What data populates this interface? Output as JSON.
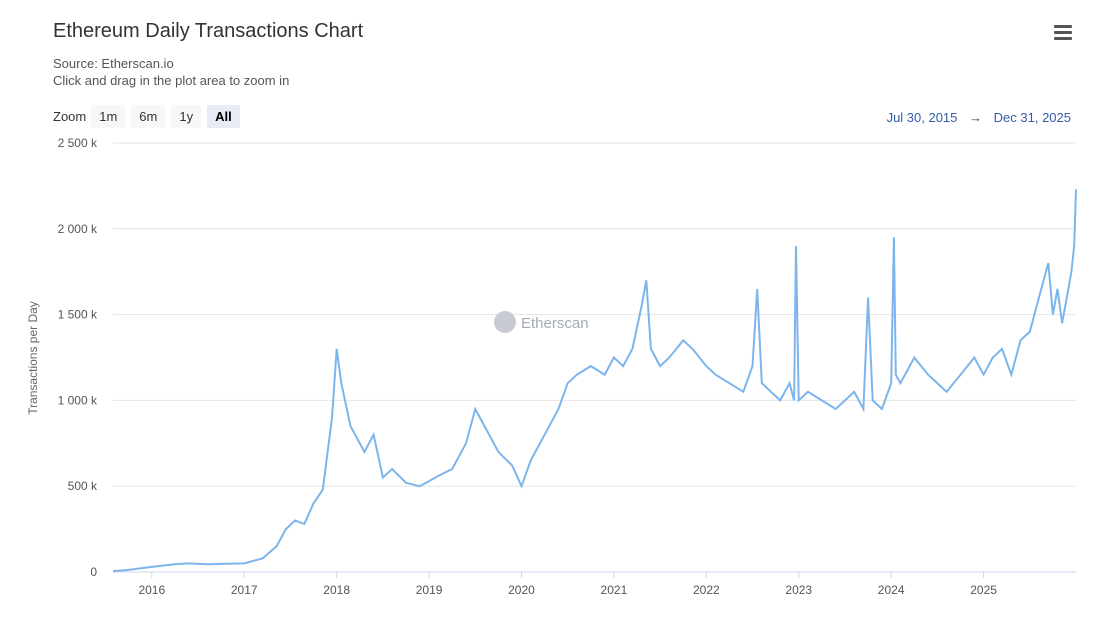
{
  "header": {
    "title": "Ethereum Daily Transactions Chart",
    "source": "Source: Etherscan.io",
    "hint": "Click and drag in the plot area to zoom in"
  },
  "zoom": {
    "label": "Zoom",
    "buttons": [
      "1m",
      "6m",
      "1y",
      "All"
    ],
    "selected": "All"
  },
  "range": {
    "from": "Jul 30, 2015",
    "arrow": "→",
    "to": "Dec 31, 2025"
  },
  "watermark": "Etherscan",
  "colors": {
    "line": "#7cb5ec",
    "grid": "#e6e6e6",
    "range_text": "#335cad"
  },
  "chart_data": {
    "type": "line",
    "title": "Ethereum Daily Transactions Chart",
    "ylabel": "Transactions per Day",
    "xlabel": "",
    "xlim": [
      2015.58,
      2026.0
    ],
    "ylim": [
      0,
      2500000
    ],
    "y_ticks": [
      0,
      500000,
      1000000,
      1500000,
      2000000,
      2500000
    ],
    "y_tick_labels": [
      "0",
      "500 k",
      "1 000 k",
      "1 500 k",
      "2 000 k",
      "2 500 k"
    ],
    "x_ticks": [
      2016,
      2017,
      2018,
      2019,
      2020,
      2021,
      2022,
      2023,
      2024,
      2025
    ],
    "x_tick_labels": [
      "2016",
      "2017",
      "2018",
      "2019",
      "2020",
      "2021",
      "2022",
      "2023",
      "2024",
      "2025"
    ],
    "grid": true,
    "legend": "none",
    "series": [
      {
        "x": [
          2015.58,
          2015.75,
          2016.0,
          2016.25,
          2016.4,
          2016.6,
          2016.8,
          2017.0,
          2017.2,
          2017.35,
          2017.45,
          2017.55,
          2017.65,
          2017.75,
          2017.85,
          2017.95,
          2018.0,
          2018.05,
          2018.15,
          2018.3,
          2018.4,
          2018.5,
          2018.6,
          2018.75,
          2018.9,
          2019.0,
          2019.1,
          2019.25,
          2019.4,
          2019.5,
          2019.6,
          2019.75,
          2019.9,
          2020.0,
          2020.1,
          2020.25,
          2020.4,
          2020.5,
          2020.6,
          2020.75,
          2020.9,
          2021.0,
          2021.1,
          2021.2,
          2021.3,
          2021.35,
          2021.4,
          2021.5,
          2021.6,
          2021.75,
          2021.85,
          2022.0,
          2022.1,
          2022.25,
          2022.4,
          2022.5,
          2022.55,
          2022.6,
          2022.7,
          2022.8,
          2022.9,
          2022.95,
          2022.97,
          2023.0,
          2023.1,
          2023.25,
          2023.4,
          2023.5,
          2023.6,
          2023.7,
          2023.75,
          2023.8,
          2023.9,
          2024.0,
          2024.03,
          2024.05,
          2024.1,
          2024.25,
          2024.4,
          2024.5,
          2024.6,
          2024.75,
          2024.9,
          2025.0,
          2025.1,
          2025.2,
          2025.3,
          2025.4,
          2025.5,
          2025.6,
          2025.7,
          2025.75,
          2025.8,
          2025.85,
          2025.9,
          2025.95,
          2025.98,
          2026.0
        ],
        "values": [
          5000,
          12000,
          30000,
          45000,
          50000,
          45000,
          48000,
          50000,
          80000,
          150000,
          250000,
          300000,
          280000,
          400000,
          480000,
          900000,
          1300000,
          1100000,
          850000,
          700000,
          800000,
          550000,
          600000,
          520000,
          500000,
          530000,
          560000,
          600000,
          750000,
          950000,
          850000,
          700000,
          620000,
          500000,
          650000,
          800000,
          950000,
          1100000,
          1150000,
          1200000,
          1150000,
          1250000,
          1200000,
          1300000,
          1550000,
          1700000,
          1300000,
          1200000,
          1250000,
          1350000,
          1300000,
          1200000,
          1150000,
          1100000,
          1050000,
          1200000,
          1650000,
          1100000,
          1050000,
          1000000,
          1100000,
          1000000,
          1900000,
          1000000,
          1050000,
          1000000,
          950000,
          1000000,
          1050000,
          950000,
          1600000,
          1000000,
          950000,
          1100000,
          1950000,
          1150000,
          1100000,
          1250000,
          1150000,
          1100000,
          1050000,
          1150000,
          1250000,
          1150000,
          1250000,
          1300000,
          1150000,
          1350000,
          1400000,
          1600000,
          1800000,
          1500000,
          1650000,
          1450000,
          1600000,
          1750000,
          1900000,
          2230000
        ]
      }
    ]
  }
}
